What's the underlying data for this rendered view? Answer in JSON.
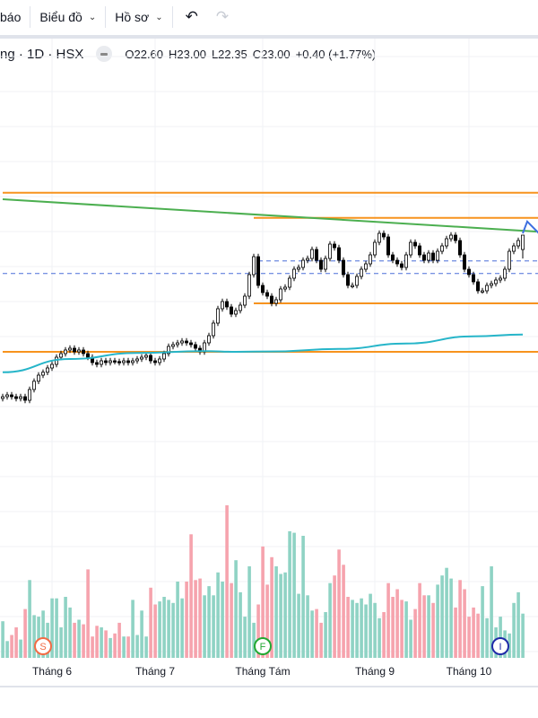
{
  "toolbar": {
    "partial_label": "báo",
    "chart_menu": "Biểu đồ",
    "profile_menu": "Hồ sơ",
    "undo_icon": "undo-icon",
    "redo_icon": "redo-icon"
  },
  "legend": {
    "symbol": "ng · 1D · HSX",
    "open": "O22.60",
    "high": "H23.00",
    "low": "L22.35",
    "close": "C23.00",
    "change": "+0.40 (+1.77%)"
  },
  "colors": {
    "up_volume": "#8fd3c4",
    "down_volume": "#f6a3ad",
    "level_line": "#f7931e",
    "trend_line": "#4caf50",
    "moving_average": "#26b5c9",
    "dashed_line": "#4a6fd8",
    "forecast_line": "#3d6fe0",
    "event_s": "#f26b45",
    "event_f": "#22a832",
    "event_i": "#1f2aa8"
  },
  "chart_data": {
    "type": "candlestick",
    "grid": true,
    "x_tick_labels": [
      "Tháng 6",
      "Tháng 7",
      "Tháng Tám",
      "Tháng 9",
      "Tháng 10"
    ],
    "x_tick_bar_index": [
      11,
      34,
      58,
      83,
      104
    ],
    "closes": [
      18.5,
      18.55,
      18.5,
      18.45,
      18.5,
      18.4,
      18.7,
      18.93,
      19.1,
      19.18,
      19.3,
      19.4,
      19.6,
      19.7,
      19.8,
      19.85,
      19.75,
      19.8,
      19.7,
      19.6,
      19.45,
      19.4,
      19.5,
      19.45,
      19.5,
      19.48,
      19.45,
      19.5,
      19.45,
      19.5,
      19.55,
      19.6,
      19.65,
      19.5,
      19.45,
      19.55,
      19.7,
      19.9,
      19.95,
      20.0,
      20.05,
      20.0,
      19.95,
      19.85,
      19.75,
      20.0,
      20.2,
      20.55,
      20.95,
      21.15,
      21.0,
      20.8,
      20.9,
      21.05,
      21.3,
      21.9,
      22.4,
      21.6,
      21.4,
      21.3,
      21.1,
      21.2,
      21.5,
      21.55,
      21.8,
      22.05,
      22.1,
      22.3,
      22.35,
      22.6,
      22.3,
      22.05,
      22.35,
      22.75,
      22.65,
      22.3,
      21.9,
      21.6,
      21.6,
      21.85,
      22.05,
      22.2,
      22.45,
      22.8,
      23.05,
      22.95,
      22.45,
      22.3,
      22.2,
      22.1,
      22.45,
      22.8,
      22.7,
      22.45,
      22.3,
      22.5,
      22.3,
      22.55,
      22.7,
      22.9,
      23.0,
      22.85,
      22.45,
      22.05,
      21.9,
      21.7,
      21.45,
      21.45,
      21.6,
      21.65,
      21.75,
      21.8,
      22.05,
      22.55,
      22.7,
      22.85,
      23.0
    ],
    "last_bar": {
      "open": 22.6,
      "high": 23.0,
      "low": 22.35,
      "close": 23.0
    },
    "volumes": [
      24,
      11,
      15,
      20,
      12,
      32,
      51,
      28,
      27,
      31,
      23,
      39,
      39,
      20,
      40,
      33,
      23,
      25,
      22,
      58,
      14,
      21,
      20,
      18,
      13,
      16,
      23,
      14,
      14,
      38,
      15,
      31,
      14,
      46,
      35,
      37,
      40,
      38,
      36,
      50,
      39,
      50,
      81,
      51,
      52,
      41,
      47,
      41,
      56,
      50,
      100,
      49,
      64,
      43,
      27,
      60,
      23,
      35,
      73,
      48,
      66,
      60,
      55,
      56,
      83,
      82,
      42,
      80,
      41,
      31,
      32,
      23,
      30,
      49,
      54,
      71,
      61,
      40,
      38,
      36,
      39,
      35,
      42,
      36,
      26,
      30,
      49,
      40,
      45,
      38,
      37,
      25,
      32,
      49,
      41,
      41,
      36,
      48,
      54,
      59,
      52,
      33,
      51,
      45,
      27,
      33,
      29,
      47,
      26,
      60,
      20,
      27,
      18,
      16,
      36,
      43,
      29
    ],
    "horizontal_levels": [
      {
        "price": 24.18,
        "from_bar": 0
      },
      {
        "price": 23.48,
        "from_bar": 56
      },
      {
        "price": 21.1,
        "from_bar": 56
      },
      {
        "price": 19.75,
        "from_bar": 0
      }
    ],
    "dashed_levels": [
      {
        "price": 22.28,
        "from_bar": 57
      },
      {
        "price": 21.93,
        "from_bar": 0
      }
    ],
    "trend_line": {
      "start": {
        "bar": 0,
        "price": 24.0
      },
      "end": {
        "bar": 119,
        "price": 23.1
      }
    },
    "moving_average": [
      [
        0,
        19.18
      ],
      [
        15,
        19.55
      ],
      [
        30,
        19.72
      ],
      [
        45,
        19.77
      ],
      [
        52,
        19.75
      ],
      [
        60,
        19.76
      ],
      [
        75,
        19.83
      ],
      [
        90,
        19.98
      ],
      [
        105,
        20.18
      ],
      [
        116,
        20.23
      ]
    ],
    "forecast_path": [
      [
        116,
        23.05
      ],
      [
        117,
        23.38
      ],
      [
        120,
        23.0
      ]
    ],
    "events": [
      {
        "label": "S",
        "bar": 9
      },
      {
        "label": "F",
        "bar": 58
      },
      {
        "label": "I",
        "bar": 111
      }
    ]
  }
}
